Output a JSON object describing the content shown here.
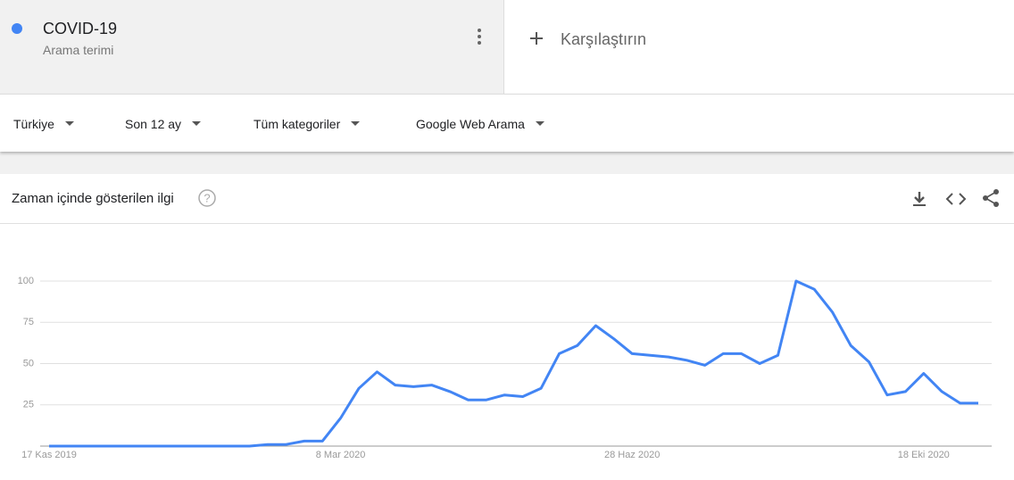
{
  "header": {
    "term": "COVID-19",
    "term_type": "Arama terimi",
    "compare": "Karşılaştırın"
  },
  "filters": [
    "Türkiye",
    "Son 12 ay",
    "Tüm kategoriler",
    "Google Web Arama"
  ],
  "section_title": "Zaman içinde gösterilen ilgi",
  "chart_data": {
    "type": "line",
    "color": "#4285f4",
    "categories": [
      "17 Kas 2019",
      null,
      null,
      null,
      null,
      null,
      null,
      null,
      null,
      null,
      null,
      null,
      null,
      null,
      null,
      null,
      "8 Mar 2020",
      null,
      null,
      null,
      null,
      null,
      null,
      null,
      null,
      null,
      null,
      null,
      null,
      null,
      null,
      null,
      "28 Haz 2020",
      null,
      null,
      null,
      null,
      null,
      null,
      null,
      null,
      null,
      null,
      null,
      null,
      null,
      null,
      null,
      "18 Eki 2020",
      null,
      null,
      null
    ],
    "values": [
      0,
      0,
      0,
      0,
      0,
      0,
      0,
      0,
      0,
      0,
      0,
      0,
      1,
      1,
      3,
      3,
      17,
      35,
      45,
      37,
      36,
      37,
      33,
      28,
      28,
      31,
      30,
      35,
      56,
      61,
      73,
      65,
      56,
      55,
      54,
      52,
      49,
      56,
      56,
      50,
      55,
      100,
      95,
      81,
      61,
      51,
      31,
      33,
      44,
      33,
      26,
      26
    ],
    "ylim": [
      0,
      100
    ],
    "yticks": [
      25,
      50,
      75,
      100
    ],
    "grid": true
  }
}
